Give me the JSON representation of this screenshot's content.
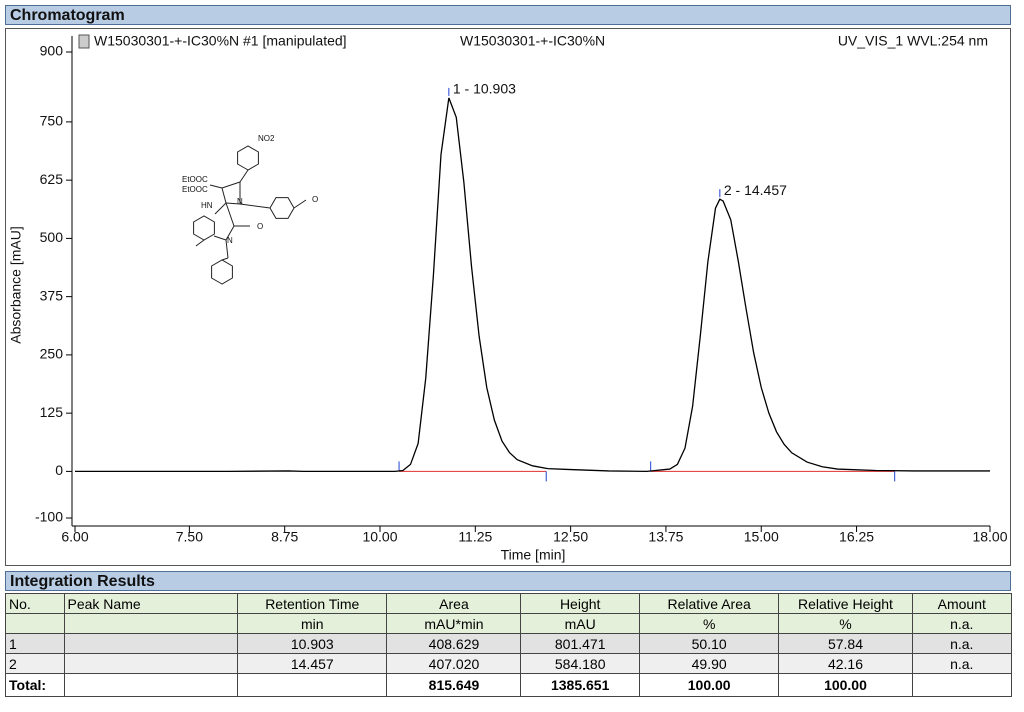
{
  "panel_title": "Chromatogram",
  "chart_data": {
    "type": "line",
    "legend_left": "W15030301-+-IC30%N #1 [manipulated]",
    "legend_center": "W15030301-+-IC30%N",
    "legend_right": "UV_VIS_1 WVL:254 nm",
    "ylabel": "Absorbance [mAU]",
    "xlabel": "Time [min]",
    "xlim": [
      6,
      18
    ],
    "ylim": [
      -100,
      900
    ],
    "xticks": [
      {
        "value": 6,
        "label": "6.00"
      },
      {
        "value": 7.5,
        "label": "7.50"
      },
      {
        "value": 8.75,
        "label": "8.75"
      },
      {
        "value": 10,
        "label": "10.00"
      },
      {
        "value": 11.25,
        "label": "11.25"
      },
      {
        "value": 12.5,
        "label": "12.50"
      },
      {
        "value": 13.75,
        "label": "13.75"
      },
      {
        "value": 15,
        "label": "15.00"
      },
      {
        "value": 16.25,
        "label": "16.25"
      },
      {
        "value": 18,
        "label": "18.00"
      }
    ],
    "yticks": [
      -100,
      0,
      125,
      250,
      375,
      500,
      625,
      750,
      900
    ],
    "x": [
      6,
      7,
      8,
      8.8,
      9,
      10,
      10.2,
      10.3,
      10.4,
      10.5,
      10.6,
      10.7,
      10.8,
      10.903,
      11.0,
      11.1,
      11.2,
      11.3,
      11.4,
      11.5,
      11.6,
      11.7,
      11.8,
      12.0,
      12.2,
      12.5,
      13.0,
      13.5,
      13.8,
      13.9,
      14.0,
      14.1,
      14.2,
      14.3,
      14.4,
      14.457,
      14.5,
      14.6,
      14.7,
      14.8,
      14.9,
      15.0,
      15.1,
      15.2,
      15.3,
      15.4,
      15.6,
      15.8,
      16.0,
      16.5,
      17.0,
      18.0
    ],
    "series": [
      {
        "name": "W15030301-+-IC30%N",
        "color": "#000000",
        "values": [
          0,
          0,
          0,
          1,
          0,
          0,
          0,
          2,
          15,
          60,
          200,
          420,
          680,
          801.471,
          760,
          620,
          440,
          290,
          180,
          110,
          65,
          40,
          25,
          12,
          6,
          4,
          1,
          0,
          5,
          15,
          50,
          140,
          290,
          450,
          565,
          584.18,
          580,
          540,
          450,
          350,
          255,
          180,
          125,
          85,
          58,
          40,
          20,
          10,
          5,
          2,
          1,
          1
        ]
      }
    ],
    "peak_limits": [
      10.25,
      12.18,
      13.55,
      16.75
    ],
    "baseline_color": "#e03030",
    "limit_color": "#2040d0",
    "peaks": [
      {
        "label": "1 - 10.903",
        "x": 10.903,
        "y": 801.471
      },
      {
        "label": "2 - 14.457",
        "x": 14.457,
        "y": 584.18
      }
    ]
  },
  "structure": {
    "labels": [
      "NO2",
      "EtOOC",
      "EtOOC",
      "HN",
      "N",
      "O",
      "N",
      "O"
    ]
  },
  "table": {
    "title": "Integration Results",
    "columns": [
      {
        "name": "No."
      },
      {
        "name": "Peak Name"
      },
      {
        "name": "Retention Time",
        "unit": "min"
      },
      {
        "name": "Area",
        "unit": "mAU*min"
      },
      {
        "name": "Height",
        "unit": "mAU"
      },
      {
        "name": "Relative Area",
        "unit": "%"
      },
      {
        "name": "Relative Height",
        "unit": "%"
      },
      {
        "name": "Amount",
        "unit": "n.a."
      }
    ],
    "rows": [
      [
        "1",
        null,
        "10.903",
        "408.629",
        "801.471",
        "50.10",
        "57.84",
        "n.a."
      ],
      [
        "2",
        null,
        "14.457",
        "407.020",
        "584.180",
        "49.90",
        "42.16",
        "n.a."
      ]
    ],
    "total": {
      "label": "Total:",
      "area": "815.649",
      "height": "1385.651",
      "relative_area": "100.00",
      "relative_height": "100.00"
    }
  }
}
